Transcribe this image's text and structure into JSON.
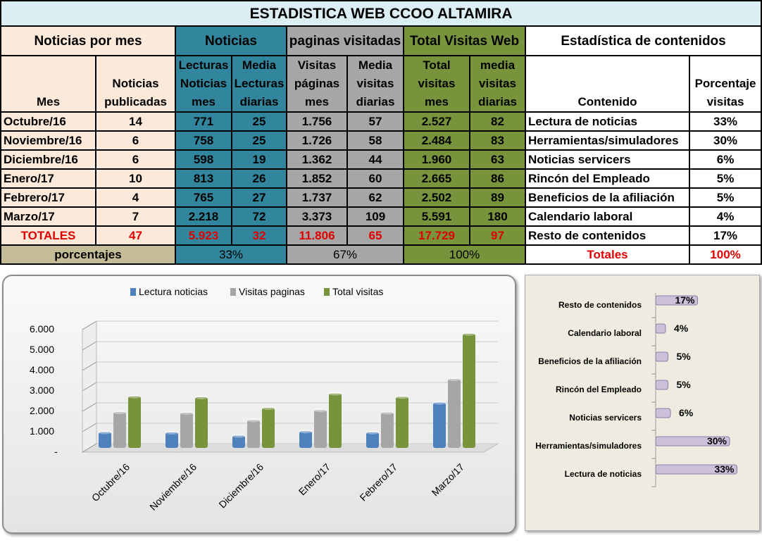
{
  "title": "ESTADISTICA WEB CCOO ALTAMIRA",
  "groups": {
    "noticias_por_mes": "Noticias por mes",
    "noticias": "Noticias",
    "paginas": "paginas visitadas",
    "total": "Total Visitas Web",
    "contenidos": "Estadística de contenidos"
  },
  "headers": [
    "Mes",
    "Noticias\npublicadas",
    "Lecturas\nNoticias\nmes",
    "Media\nLecturas\ndiarias",
    "Visitas\npáginas\nmes",
    "Media\nvisitas\ndiarias",
    "Total\nvisitas\nmes",
    "media\nvisitas\ndiarias",
    "Contenido",
    "Porcentaje\nvisitas"
  ],
  "rows": [
    [
      "Octubre/16",
      "14",
      "771",
      "25",
      "1.756",
      "57",
      "2.527",
      "82",
      "Lectura de noticias",
      "33%"
    ],
    [
      "Noviembre/16",
      "6",
      "758",
      "25",
      "1.726",
      "58",
      "2.484",
      "83",
      "Herramientas/simuladores",
      "30%"
    ],
    [
      "Diciembre/16",
      "6",
      "598",
      "19",
      "1.362",
      "44",
      "1.960",
      "63",
      "Noticias servicers",
      "6%"
    ],
    [
      "Enero/17",
      "10",
      "813",
      "26",
      "1.852",
      "60",
      "2.665",
      "86",
      "Rincón del Empleado",
      "5%"
    ],
    [
      "Febrero/17",
      "4",
      "765",
      "27",
      "1.737",
      "62",
      "2.502",
      "89",
      "Beneficios de la afiliación",
      "5%"
    ],
    [
      "Marzo/17",
      "7",
      "2.218",
      "72",
      "3.373",
      "109",
      "5.591",
      "180",
      "Calendario laboral",
      "4%"
    ]
  ],
  "totals": [
    "TOTALES",
    "47",
    "5.923",
    "32",
    "11.806",
    "65",
    "17.729",
    "97",
    "Resto de contenidos",
    "17%"
  ],
  "percent_row": {
    "label": "porcentajes",
    "noticias": "33%",
    "paginas": "67%",
    "total": "100%",
    "totales_label": "Totales",
    "totales_value": "100%"
  },
  "colors": {
    "peach": "#fde9d9",
    "teal": "#31859c",
    "gray": "#a6a6a6",
    "green": "#77933c",
    "red": "#e00000"
  },
  "chart_data": [
    {
      "type": "bar",
      "title": "",
      "categories": [
        "Octubre/16",
        "Noviembre/16",
        "Diciembre/16",
        "Enero/17",
        "Febrero/17",
        "Marzo/17"
      ],
      "series": [
        {
          "name": "Lectura noticias",
          "color": "#4f81bd",
          "values": [
            771,
            758,
            598,
            813,
            765,
            2218
          ]
        },
        {
          "name": "Visitas paginas",
          "color": "#a6a6a6",
          "values": [
            1756,
            1726,
            1362,
            1852,
            1737,
            3373
          ]
        },
        {
          "name": "Total visitas",
          "color": "#77933c",
          "values": [
            2527,
            2484,
            1960,
            2665,
            2502,
            5591
          ]
        }
      ],
      "ylim": [
        0,
        6000
      ],
      "yticks": [
        "-",
        "1.000",
        "2.000",
        "3.000",
        "4.000",
        "5.000",
        "6.000"
      ],
      "legend": "top"
    },
    {
      "type": "bar",
      "orientation": "horizontal",
      "categories": [
        "Lectura de noticias",
        "Herramientas/simuladores",
        "Noticias servicers",
        "Rincón del Empleado",
        "Beneficios de la afiliación",
        "Calendario laboral",
        "Resto de contenidos"
      ],
      "values": [
        33,
        30,
        6,
        5,
        5,
        4,
        17
      ],
      "labels": [
        "33%",
        "30%",
        "6%",
        "5%",
        "5%",
        "4%",
        "17%"
      ],
      "color": "#ccc0da"
    }
  ]
}
